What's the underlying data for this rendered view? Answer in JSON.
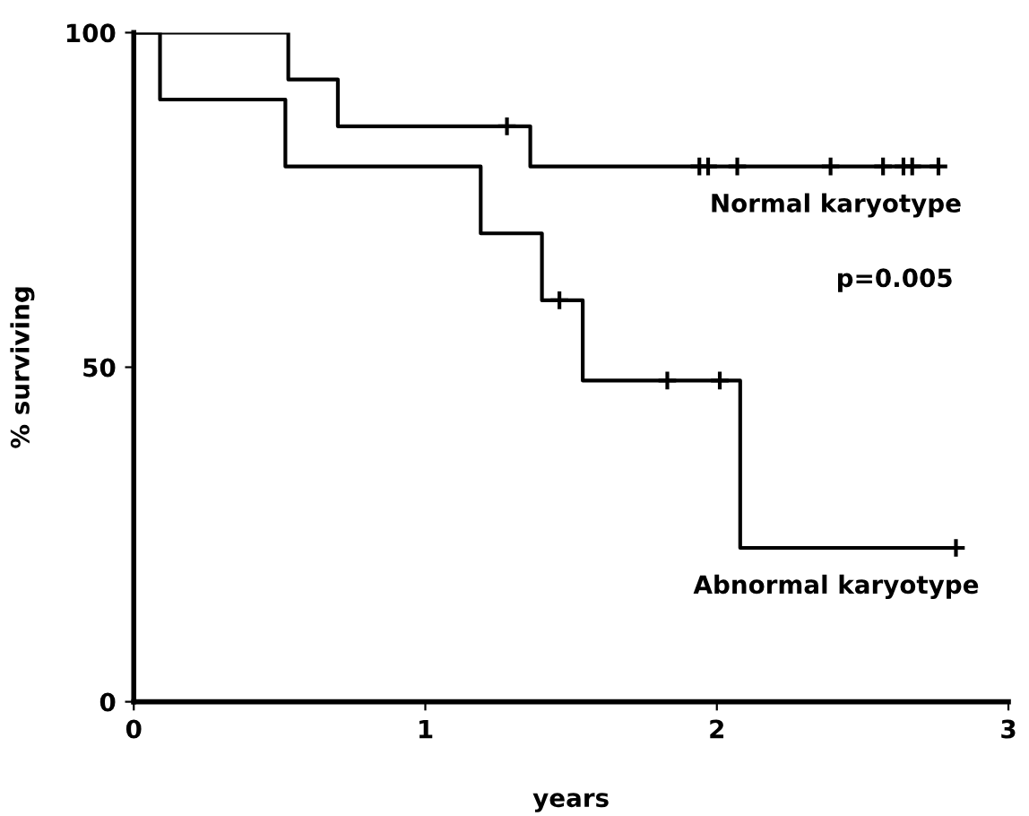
{
  "chart_data": {
    "type": "step",
    "xlabel": "years",
    "ylabel": "% surviving",
    "xlim": [
      0,
      3
    ],
    "xticks": [
      0,
      1,
      2,
      3
    ],
    "ylim": [
      0,
      100
    ],
    "yticks": [
      0,
      50,
      100
    ],
    "grid": false,
    "legend": "right",
    "annotations": [
      "p=0.005"
    ],
    "series": [
      {
        "name": "Normal karyotype",
        "color": "#000000",
        "x": [
          0,
          0.53,
          0.7,
          1.36,
          2.76
        ],
        "values": [
          100,
          93,
          86,
          80,
          80
        ]
      },
      {
        "name": "Abnormal karyotype",
        "color": "#000000",
        "x": [
          0,
          0.09,
          0.52,
          1.19,
          1.4,
          1.54,
          2.08,
          2.82
        ],
        "values": [
          100,
          90,
          80,
          70,
          60,
          48,
          23,
          23
        ]
      },
      {
        "type": "scatter",
        "marker": "cross",
        "color": "#000000",
        "x": [
          1.28,
          1.94,
          1.97,
          2.07,
          2.39,
          2.57,
          2.64,
          2.67,
          2.76
        ],
        "values": [
          86,
          80,
          80,
          80,
          80,
          80,
          80,
          80,
          80
        ]
      },
      {
        "type": "scatter",
        "marker": "cross",
        "color": "#000000",
        "x": [
          1.46,
          1.83,
          2.01,
          2.82
        ],
        "values": [
          60,
          48,
          48,
          23
        ]
      }
    ]
  }
}
